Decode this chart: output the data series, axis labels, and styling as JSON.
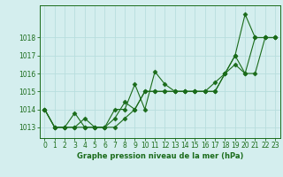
{
  "xlabel": "Graphe pression niveau de la mer (hPa)",
  "background_color": "#d4eeee",
  "line_color": "#1a6b1a",
  "marker_color": "#1a6b1a",
  "grid_color": "#b8dede",
  "text_color": "#1a6b1a",
  "ylim": [
    1012.4,
    1019.8
  ],
  "yticks": [
    1013,
    1014,
    1015,
    1016,
    1017,
    1018
  ],
  "xticks": [
    0,
    1,
    2,
    3,
    4,
    5,
    6,
    7,
    8,
    9,
    10,
    11,
    12,
    13,
    14,
    15,
    16,
    17,
    18,
    19,
    20,
    21,
    22,
    23
  ],
  "series": [
    [
      1014.0,
      1013.0,
      1013.0,
      1013.8,
      1013.0,
      1013.0,
      1013.0,
      1014.0,
      1014.0,
      1015.4,
      1014.0,
      1016.1,
      1015.4,
      1015.0,
      1015.0,
      1015.0,
      1015.0,
      1015.0,
      1016.0,
      1017.0,
      1019.3,
      1018.0,
      1018.0,
      1018.0
    ],
    [
      1014.0,
      1013.0,
      1013.0,
      1013.0,
      1013.5,
      1013.0,
      1013.0,
      1013.5,
      1014.4,
      1014.0,
      1015.0,
      1015.0,
      1015.0,
      1015.0,
      1015.0,
      1015.0,
      1015.0,
      1015.0,
      1016.0,
      1016.5,
      1016.0,
      1018.0,
      1018.0,
      1018.0
    ],
    [
      1014.0,
      1013.0,
      1013.0,
      1013.0,
      1013.0,
      1013.0,
      1013.0,
      1013.0,
      1013.5,
      1014.0,
      1015.0,
      1015.0,
      1015.0,
      1015.0,
      1015.0,
      1015.0,
      1015.0,
      1015.5,
      1016.0,
      1017.0,
      1016.0,
      1016.0,
      1018.0,
      1018.0
    ]
  ],
  "xlabel_fontsize": 6.0,
  "tick_fontsize": 5.5,
  "linewidth": 0.8,
  "markersize": 2.5
}
